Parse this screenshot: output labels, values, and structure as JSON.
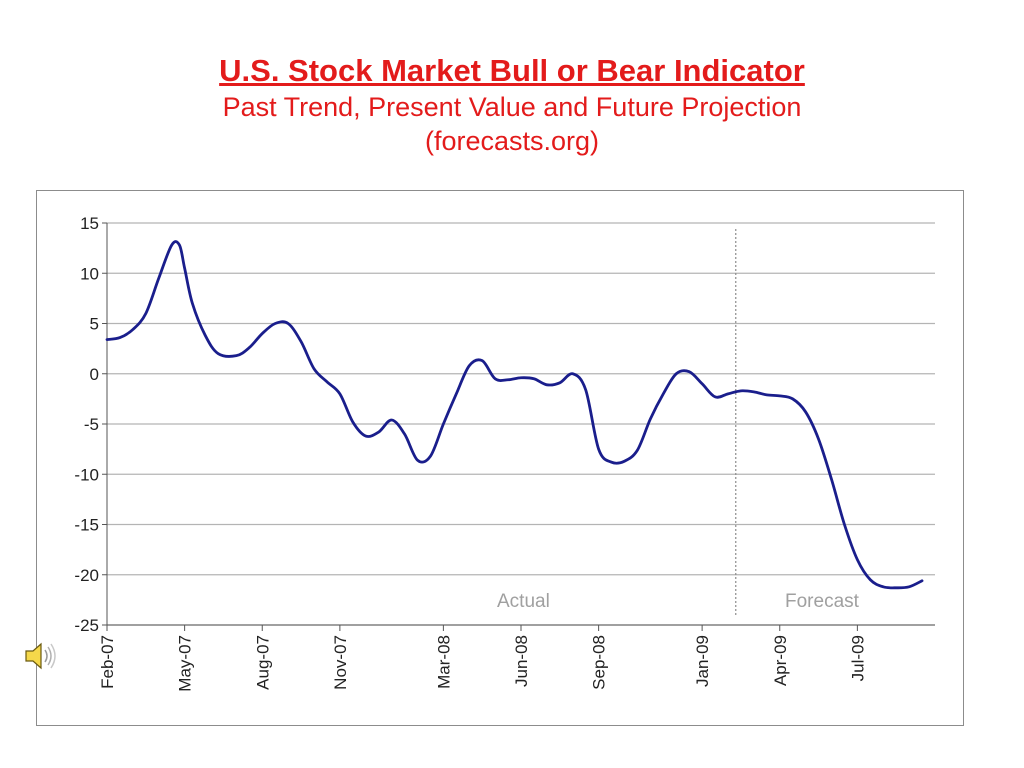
{
  "slide": {
    "title": "U.S. Stock Market Bull or Bear Indicator",
    "subtitle": "Past Trend, Present Value and Future Projection",
    "source": "(forecasts.org)"
  },
  "colors": {
    "title": "#e31b1b",
    "line": "#1a1e8c",
    "grid": "#b4b4b4",
    "annotation": "#a0a0a0",
    "divider": "#8c8c8c"
  },
  "speaker_icon": "speaker-icon",
  "chart_data": {
    "type": "line",
    "ylim": [
      -25,
      15
    ],
    "yticks": [
      15,
      10,
      5,
      0,
      -5,
      -10,
      -15,
      -20,
      -25
    ],
    "grid": "horizontal",
    "x_tick_labels": [
      "Feb-07",
      "May-07",
      "Aug-07",
      "Nov-07",
      "Mar-08",
      "Jun-08",
      "Sep-08",
      "Jan-09",
      "Apr-09",
      "Jul-09"
    ],
    "x_tick_months": [
      0,
      3,
      6,
      9,
      13,
      16,
      19,
      23,
      26,
      29
    ],
    "x_range_months": [
      0,
      32
    ],
    "forecast_start_month": 24.3,
    "annotations": [
      "Actual",
      "Forecast"
    ],
    "series": [
      {
        "x": [
          0,
          0.5,
          1,
          1.5,
          2,
          2.5,
          2.8,
          3,
          3.3,
          3.8,
          4.3,
          5,
          5.5,
          6,
          6.5,
          7,
          7.5,
          8,
          8.5,
          9,
          9.5,
          10,
          10.5,
          11,
          11.5,
          12,
          12.5,
          13,
          13.5,
          14,
          14.5,
          15,
          15.5,
          16,
          16.5,
          17,
          17.5,
          18,
          18.5,
          19,
          19.5,
          20,
          20.5,
          21,
          21.5,
          22,
          22.5,
          23,
          23.5,
          24,
          24.5,
          25,
          25.5,
          26,
          26.5,
          27,
          27.5,
          28,
          28.5,
          29,
          29.5,
          30,
          30.5,
          31,
          31.5
        ],
        "values": [
          3.4,
          3.6,
          4.4,
          6,
          9.5,
          12.8,
          12.8,
          10.5,
          7,
          3.8,
          2,
          1.8,
          2.6,
          4,
          5,
          5,
          3.2,
          0.5,
          -0.8,
          -2,
          -4.8,
          -6.2,
          -5.8,
          -4.6,
          -6,
          -8.6,
          -8.2,
          -5,
          -2,
          0.8,
          1.3,
          -0.5,
          -0.6,
          -0.4,
          -0.5,
          -1.1,
          -0.9,
          0,
          -1.6,
          -7.5,
          -8.8,
          -8.7,
          -7.6,
          -4.5,
          -2,
          0,
          0.2,
          -1,
          -2.3,
          -2,
          -1.7,
          -1.8,
          -2.1,
          -2.2,
          -2.5,
          -3.8,
          -6.5,
          -10.5,
          -15,
          -18.5,
          -20.5,
          -21.2,
          -21.3,
          -21.2,
          -20.6
        ]
      }
    ]
  }
}
